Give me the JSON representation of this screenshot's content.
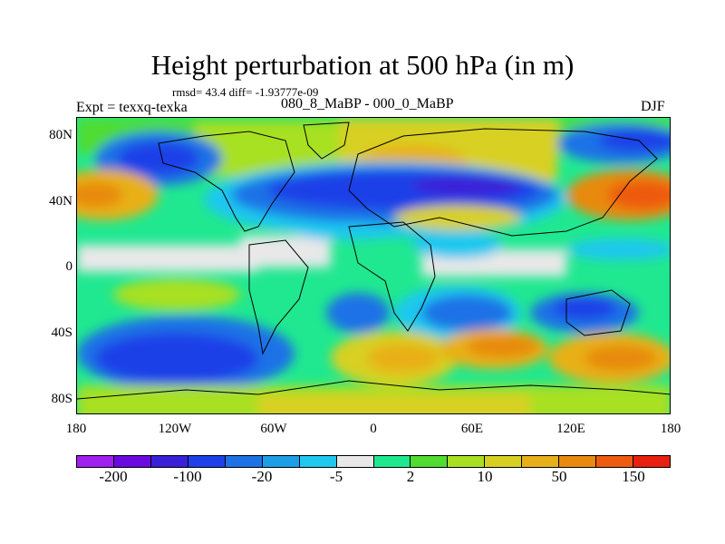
{
  "title": "Height perturbation at 500 hPa (in m)",
  "stats": "rmsd= 43.4 diff= -1.93777e-09",
  "left_label": "Expt = texxq-texka",
  "center_label": "080_8_MaBP - 000_0_MaBP",
  "right_label": "DJF",
  "y_ticks": [
    "80N",
    "40N",
    "0",
    "40S",
    "80S"
  ],
  "x_ticks": [
    "180",
    "120W",
    "60W",
    "0",
    "60E",
    "120E",
    "180"
  ],
  "colorbar": {
    "colors": [
      "#a020f0",
      "#6a0ae0",
      "#3a20d8",
      "#1e40e8",
      "#1e72e6",
      "#1f9ee8",
      "#1fc8ee",
      "#e8e8e8",
      "#20e890",
      "#50dc30",
      "#a8e020",
      "#d8d020",
      "#e8b018",
      "#e88a10",
      "#ee5a10",
      "#e82010"
    ],
    "labels": [
      "-200",
      "-100",
      "-20",
      "-5",
      "2",
      "10",
      "50",
      "150"
    ]
  }
}
